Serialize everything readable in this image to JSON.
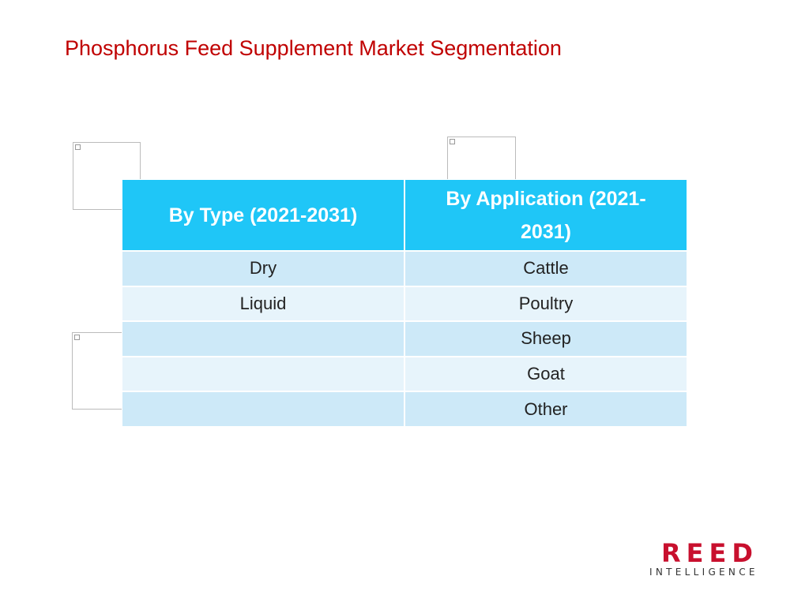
{
  "header": {
    "title": "Phosphorus Feed Supplement Market Segmentation"
  },
  "table": {
    "columns": [
      {
        "header": "By Type (2021-2031)",
        "items": [
          "Dry",
          "Liquid"
        ]
      },
      {
        "header": "By Application (2021-2031)",
        "items": [
          "Cattle",
          "Poultry",
          "Sheep",
          "Goat",
          "Other"
        ]
      }
    ]
  },
  "logo": {
    "name": "REED",
    "tagline": "INTELLIGENCE"
  }
}
